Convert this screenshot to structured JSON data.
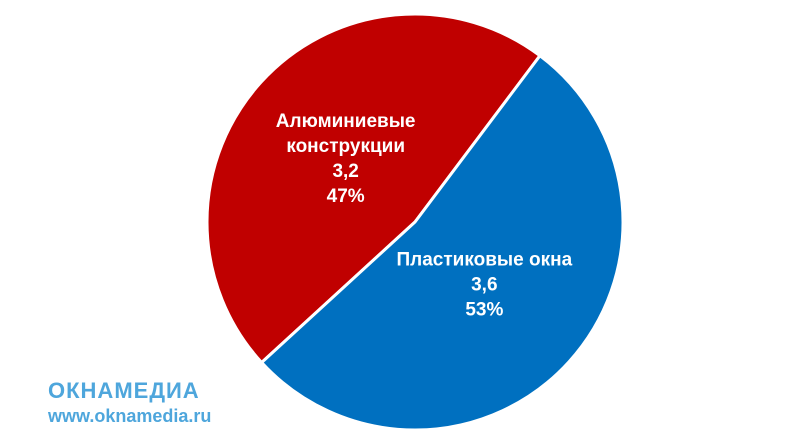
{
  "chart_data": {
    "type": "pie",
    "categories": [
      "Алюминиевые конструкции",
      "Пластиковые окна"
    ],
    "values": [
      3.2,
      3.6
    ],
    "value_labels": [
      "3,2",
      "3,6"
    ],
    "percent_labels": [
      "47%",
      "53%"
    ],
    "colors": [
      "#c00000",
      "#0070c0"
    ]
  },
  "logo": {
    "name": "ОКНАМЕДИА",
    "url": "www.oknamedia.ru"
  }
}
